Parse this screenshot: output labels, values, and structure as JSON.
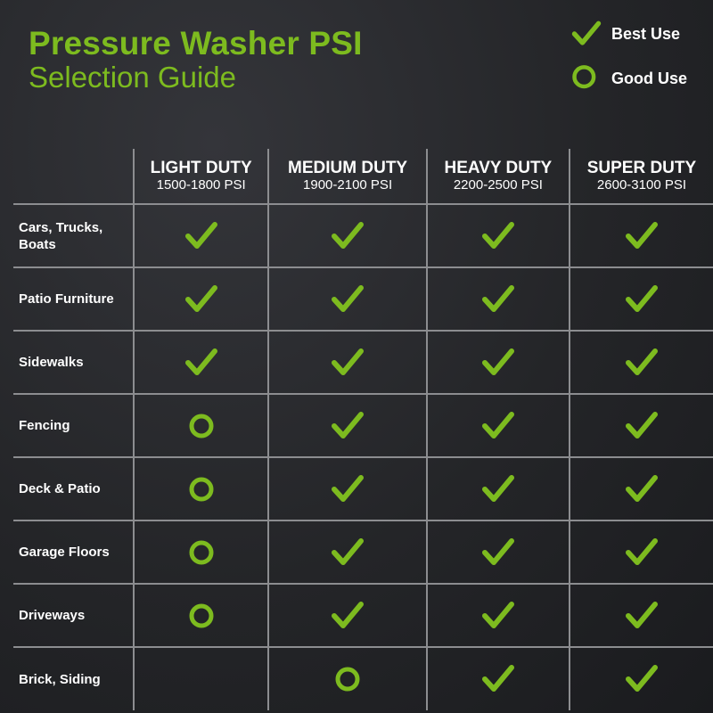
{
  "title": {
    "line1": "Pressure Washer PSI",
    "line2": "Selection Guide"
  },
  "legend": {
    "best": "Best Use",
    "good": "Good Use"
  },
  "colors": {
    "accent": "#7dbb1f",
    "background": "#242528"
  },
  "columns": [
    {
      "name": "LIGHT DUTY",
      "psi": "1500-1800 PSI"
    },
    {
      "name": "MEDIUM DUTY",
      "psi": "1900-2100 PSI"
    },
    {
      "name": "HEAVY DUTY",
      "psi": "2200-2500 PSI"
    },
    {
      "name": "SUPER DUTY",
      "psi": "2600-3100 PSI"
    }
  ],
  "rows": [
    {
      "label": "Cars, Trucks, Boats",
      "values": [
        "best",
        "best",
        "best",
        "best"
      ]
    },
    {
      "label": "Patio Furniture",
      "values": [
        "best",
        "best",
        "best",
        "best"
      ]
    },
    {
      "label": "Sidewalks",
      "values": [
        "best",
        "best",
        "best",
        "best"
      ]
    },
    {
      "label": "Fencing",
      "values": [
        "good",
        "best",
        "best",
        "best"
      ]
    },
    {
      "label": "Deck & Patio",
      "values": [
        "good",
        "best",
        "best",
        "best"
      ]
    },
    {
      "label": "Garage Floors",
      "values": [
        "good",
        "best",
        "best",
        "best"
      ]
    },
    {
      "label": "Driveways",
      "values": [
        "good",
        "best",
        "best",
        "best"
      ]
    },
    {
      "label": "Brick, Siding",
      "values": [
        "none",
        "good",
        "best",
        "best"
      ]
    }
  ]
}
